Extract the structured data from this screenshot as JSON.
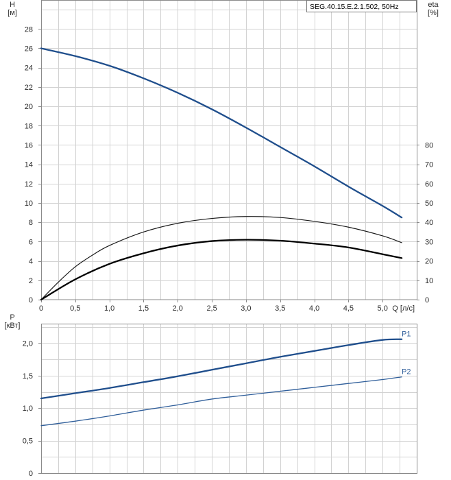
{
  "chart_data": [
    {
      "type": "line",
      "panel": "head-efficiency",
      "legend": "SEG.40.15.E.2.1.502, 50Hz",
      "legend_placement": "top-right",
      "grid": true,
      "xlabel": "Q [л/с]",
      "xlim": [
        0,
        5.5
      ],
      "xticks": [
        "0",
        "0,5",
        "1,0",
        "1,5",
        "2,0",
        "2,5",
        "3,0",
        "3,5",
        "4,0",
        "4,5",
        "5,0"
      ],
      "ylabel": [
        "H",
        "[м]"
      ],
      "ylim": [
        0,
        31
      ],
      "yticks": [
        "0",
        "2",
        "4",
        "6",
        "8",
        "10",
        "12",
        "14",
        "16",
        "18",
        "20",
        "22",
        "24",
        "26",
        "28"
      ],
      "y2label": [
        "eta",
        "[%]"
      ],
      "y2lim": [
        0,
        155
      ],
      "y2ticks": [
        "0",
        "10",
        "20",
        "30",
        "40",
        "50",
        "60",
        "70",
        "80"
      ],
      "series": [
        {
          "axis": "left",
          "color": "#1f4e8c",
          "stroke": 2.3,
          "x": [
            0,
            0.5,
            1.0,
            1.5,
            2.0,
            2.5,
            3.0,
            3.5,
            4.0,
            4.5,
            5.0,
            5.28
          ],
          "values": [
            26.0,
            25.2,
            24.2,
            22.9,
            21.4,
            19.7,
            17.8,
            15.8,
            13.8,
            11.7,
            9.7,
            8.5
          ]
        },
        {
          "axis": "right",
          "color": "#1a1a1a",
          "stroke": 1.2,
          "x": [
            0,
            0.25,
            0.5,
            0.75,
            1.0,
            1.5,
            2.0,
            2.5,
            3.0,
            3.5,
            4.0,
            4.5,
            5.0,
            5.28
          ],
          "values": [
            0,
            9,
            17,
            23,
            28,
            35,
            39.5,
            42,
            43,
            42.5,
            40.5,
            37.5,
            33,
            29.5
          ]
        },
        {
          "axis": "right",
          "color": "#000000",
          "stroke": 2.3,
          "x": [
            0,
            0.5,
            1.0,
            1.5,
            2.0,
            2.5,
            3.0,
            3.5,
            4.0,
            4.5,
            5.0,
            5.28
          ],
          "values": [
            0,
            10.5,
            18.5,
            24,
            28,
            30.3,
            31,
            30.5,
            29,
            27,
            23.5,
            21.5
          ]
        }
      ]
    },
    {
      "type": "line",
      "panel": "power",
      "grid": true,
      "xlim": [
        0,
        5.5
      ],
      "ylabel": [
        "P",
        "[кВт]"
      ],
      "ylim": [
        0,
        2.3
      ],
      "yticks": [
        "0",
        "0,5",
        "1,0",
        "1,5",
        "2,0"
      ],
      "series": [
        {
          "name": "P1",
          "color": "#1f4e8c",
          "stroke": 2.3,
          "x": [
            0,
            0.5,
            1.0,
            1.5,
            2.0,
            2.5,
            3.0,
            3.5,
            4.0,
            4.5,
            5.0,
            5.28
          ],
          "values": [
            1.15,
            1.23,
            1.31,
            1.4,
            1.49,
            1.59,
            1.69,
            1.79,
            1.88,
            1.97,
            2.05,
            2.06
          ]
        },
        {
          "name": "P2",
          "color": "#2f5e9a",
          "stroke": 1.3,
          "x": [
            0,
            0.5,
            1.0,
            1.5,
            2.0,
            2.5,
            3.0,
            3.5,
            4.0,
            4.5,
            5.0,
            5.28
          ],
          "values": [
            0.73,
            0.8,
            0.88,
            0.97,
            1.05,
            1.14,
            1.2,
            1.26,
            1.32,
            1.38,
            1.44,
            1.48
          ]
        }
      ]
    }
  ]
}
